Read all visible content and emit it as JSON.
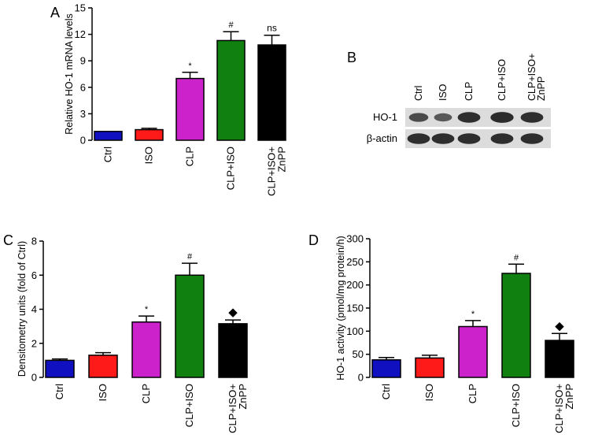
{
  "panel_labels": {
    "a": "A",
    "b": "B",
    "c": "C",
    "d": "D"
  },
  "colors": {
    "Ctrl": "#1010c0",
    "ISO": "#ff1a1a",
    "CLP": "#cc22cc",
    "CLP+ISO": "#108010",
    "CLP+ISO+ZnPP": "#000000",
    "blot_background": "#dcdcdc",
    "blot_band": "#262626"
  },
  "western_blot": {
    "lanes": [
      "Ctrl",
      "ISO",
      "CLP",
      "CLP+ISO",
      "CLP+ISO+ ZnPP"
    ],
    "rows": [
      {
        "label": "HO-1",
        "band_intensity": [
          0.55,
          0.4,
          0.9,
          0.95,
          0.9
        ]
      },
      {
        "label": "β-actin",
        "band_intensity": [
          0.9,
          0.9,
          0.9,
          0.9,
          0.9
        ]
      }
    ]
  },
  "chart_data": [
    {
      "id": "A",
      "type": "bar",
      "ylabel": "Relative HO-1 mRNA levels",
      "xlabel": "",
      "title": "",
      "categories": [
        "Ctrl",
        "ISO",
        "CLP",
        "CLP+ISO",
        "CLP+ISO+ ZnPP"
      ],
      "values": [
        1.0,
        1.2,
        7.0,
        11.3,
        10.8
      ],
      "errors": [
        0.0,
        0.15,
        0.7,
        1.0,
        1.1
      ],
      "annotations": [
        "",
        "",
        "*",
        "#",
        "ns"
      ],
      "ylim": [
        0,
        15
      ],
      "yticks": [
        0,
        3,
        6,
        9,
        12,
        15
      ],
      "grid": false
    },
    {
      "id": "C",
      "type": "bar",
      "ylabel": "Densitometry units (fold of Ctrl)",
      "xlabel": "",
      "title": "",
      "categories": [
        "Ctrl",
        "ISO",
        "CLP",
        "CLP+ISO",
        "CLP+ISO+ ZnPP"
      ],
      "values": [
        1.0,
        1.3,
        3.25,
        6.0,
        3.15
      ],
      "errors": [
        0.08,
        0.15,
        0.35,
        0.7,
        0.22
      ],
      "annotations": [
        "",
        "",
        "*",
        "#",
        "◆"
      ],
      "ylim": [
        0,
        8
      ],
      "yticks": [
        0,
        2,
        4,
        6,
        8
      ],
      "grid": false
    },
    {
      "id": "D",
      "type": "bar",
      "ylabel": "HO-1 activity (pmol/mg protein/h)",
      "xlabel": "",
      "title": "",
      "categories": [
        "Ctrl",
        "ISO",
        "CLP",
        "CLP+ISO",
        "CLP+ISO+ ZnPP"
      ],
      "values": [
        38,
        42,
        110,
        225,
        80
      ],
      "errors": [
        5,
        6,
        13,
        20,
        15
      ],
      "annotations": [
        "",
        "",
        "*",
        "#",
        "◆"
      ],
      "ylim": [
        0,
        300
      ],
      "yticks": [
        0,
        50,
        100,
        150,
        200,
        250,
        300
      ],
      "grid": false
    }
  ]
}
